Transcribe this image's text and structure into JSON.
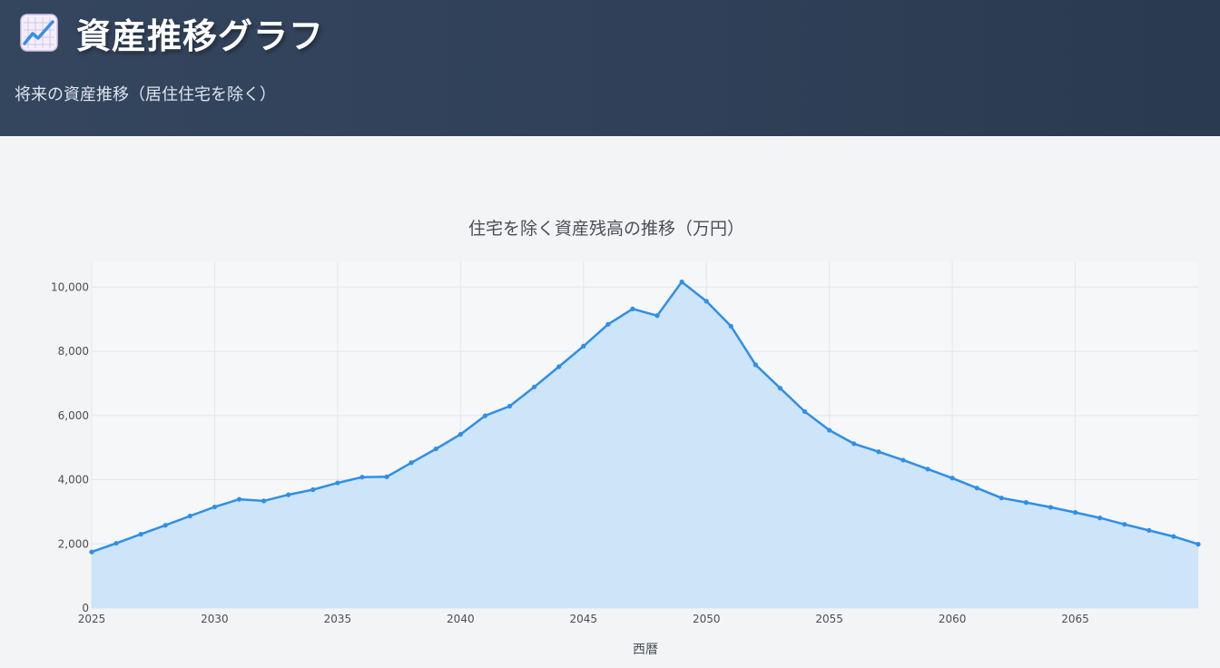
{
  "header": {
    "title": "資産推移グラフ",
    "subtitle": "将来の資産推移（居住住宅を除く）",
    "icon": "chart-increasing-icon"
  },
  "colors": {
    "header_bg": "#2f4058",
    "line": "#2f8fe6",
    "area": "#cde4f9",
    "plot_bg": "#f5f7f9"
  },
  "chart_data": {
    "type": "area",
    "title": "住宅を除く資産残高の推移（万円）",
    "xlabel": "西暦",
    "ylabel": "",
    "xlim": [
      2025,
      2070
    ],
    "ylim": [
      0,
      10800
    ],
    "grid": true,
    "x_ticks": [
      2025,
      2030,
      2035,
      2040,
      2045,
      2050,
      2055,
      2060,
      2065
    ],
    "x_tick_labels": [
      "2025",
      "2030",
      "2035",
      "2040",
      "2045",
      "2050",
      "2055",
      "2060",
      "2065"
    ],
    "y_ticks": [
      0,
      2000,
      4000,
      6000,
      8000,
      10000
    ],
    "y_tick_labels": [
      "0",
      "2,000",
      "4,000",
      "6,000",
      "8,000",
      "10,000"
    ],
    "x": [
      2025,
      2026,
      2027,
      2028,
      2029,
      2030,
      2031,
      2032,
      2033,
      2034,
      2035,
      2036,
      2037,
      2038,
      2039,
      2040,
      2041,
      2042,
      2043,
      2044,
      2045,
      2046,
      2047,
      2048,
      2049,
      2050,
      2051,
      2052,
      2053,
      2054,
      2055,
      2056,
      2057,
      2058,
      2059,
      2060,
      2061,
      2062,
      2063,
      2064,
      2065,
      2066,
      2067,
      2068,
      2069,
      2070
    ],
    "series": [
      {
        "values": [
          1750,
          2020,
          2300,
          2580,
          2870,
          3150,
          3390,
          3340,
          3530,
          3690,
          3900,
          4080,
          4090,
          4530,
          4960,
          5410,
          5990,
          6290,
          6890,
          7520,
          8160,
          8840,
          9320,
          9110,
          10160,
          9560,
          8780,
          7580,
          6850,
          6120,
          5540,
          5120,
          4870,
          4610,
          4330,
          4050,
          3740,
          3430,
          3290,
          3140,
          2980,
          2810,
          2610,
          2420,
          2230,
          1990
        ]
      }
    ]
  }
}
